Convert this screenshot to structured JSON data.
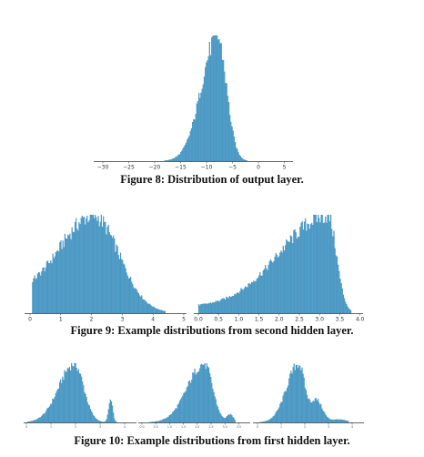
{
  "figures": [
    {
      "caption": "Figure 8: Distribution of output layer."
    },
    {
      "caption": "Figure 9: Example distributions from second hidden layer."
    },
    {
      "caption": "Figure 10: Example distributions from first hidden layer."
    }
  ],
  "bar_color": "#4a9bc7",
  "bar_edge_color": "#2f7fae",
  "chart_data": [
    {
      "type": "bar",
      "x_ticks": [
        "−30",
        "−25",
        "−20",
        "−15",
        "−10",
        "−5",
        "0",
        "5"
      ],
      "xlim": [
        -32,
        6
      ],
      "series": [
        {
          "shape": "skewed-peak",
          "peak_x": -7,
          "range": [
            -25,
            0
          ],
          "values": []
        }
      ]
    },
    {
      "type": "bar",
      "panels": [
        {
          "x_ticks": [
            "0",
            "1",
            "2",
            "3",
            "4",
            "5"
          ],
          "xlim": [
            -0.1,
            5
          ],
          "series": [
            {
              "shape": "broad-peak",
              "peak_x": 2.0,
              "range": [
                0,
                4.2
              ],
              "values": []
            }
          ]
        },
        {
          "x_ticks": [
            "0.0",
            "0.5",
            "1.0",
            "1.5",
            "2.0",
            "2.5",
            "3.0",
            "3.5",
            "4.0"
          ],
          "xlim": [
            -0.1,
            4.1
          ],
          "series": [
            {
              "shape": "rising-peak",
              "peak_x": 2.8,
              "range": [
                0,
                3.5
              ],
              "values": []
            }
          ]
        }
      ]
    },
    {
      "type": "bar",
      "panels": [
        {
          "x_ticks": [
            "0",
            "1",
            "2",
            "3",
            "4"
          ],
          "xlim": [
            -0.1,
            4.3
          ],
          "series": [
            {
              "shape": "peak-with-satellite",
              "peak_x": 2.0,
              "values": []
            }
          ]
        },
        {
          "x_ticks": [
            "0.0",
            "0.5",
            "1.0",
            "1.5",
            "2.0",
            "2.5",
            "3.0",
            "3.5"
          ],
          "xlim": [
            -0.1,
            3.8
          ],
          "series": [
            {
              "shape": "peak-with-satellite",
              "peak_x": 2.5,
              "values": []
            }
          ]
        },
        {
          "x_ticks": [
            "0",
            "1",
            "2",
            "3",
            "4"
          ],
          "xlim": [
            -0.1,
            4.3
          ],
          "series": [
            {
              "shape": "peak-with-shoulder",
              "peak_x": 2.0,
              "values": []
            }
          ]
        }
      ]
    }
  ]
}
